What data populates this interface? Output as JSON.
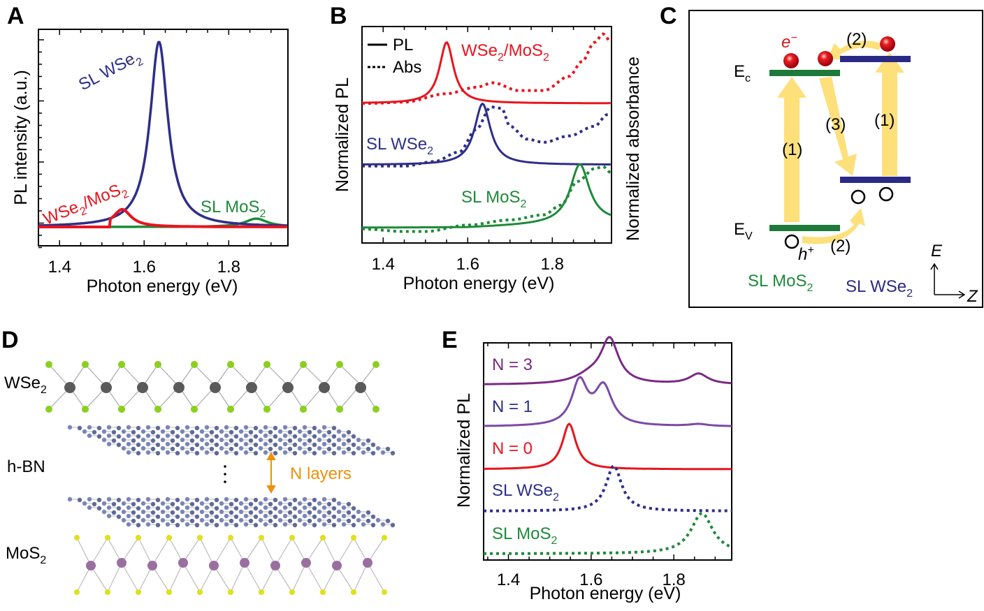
{
  "figure": {
    "panels": [
      "A",
      "B",
      "C",
      "D",
      "E"
    ]
  },
  "chart_data": [
    {
      "panel": "A",
      "type": "line",
      "title": "",
      "xlabel": "Photon energy (eV)",
      "ylabel": "PL intensity (a.u.)",
      "xlim": [
        1.35,
        1.94
      ],
      "ylim": [
        -0.05,
        1.05
      ],
      "xticks": [
        1.4,
        1.6,
        1.8
      ],
      "xtick_labels": [
        "1.4",
        "1.6",
        "1.8"
      ],
      "grid": false,
      "series": [
        {
          "name": "SL WSe2",
          "label": "SL WSe",
          "sub": "2",
          "color": "#2e2e8a",
          "style": "solid",
          "peaks": [
            {
              "center": 1.635,
              "height": 1.0,
              "width": 0.028
            }
          ]
        },
        {
          "name": "WSe2/MoS2",
          "label": "WSe",
          "sub": "2",
          "label2": "/MoS",
          "sub2": "2",
          "color": "#e8141e",
          "style": "solid",
          "peaks": [
            {
              "center": 1.548,
              "height": 0.095,
              "width": 0.028
            }
          ]
        },
        {
          "name": "SL MoS2",
          "label": "SL MoS",
          "sub": "2",
          "color": "#1e8a3a",
          "style": "solid",
          "peaks": [
            {
              "center": 1.865,
              "height": 0.045,
              "width": 0.035
            }
          ]
        }
      ]
    },
    {
      "panel": "B",
      "type": "line",
      "title": "",
      "xlabel": "Photon energy (eV)",
      "ylabel": "Normalized PL",
      "ylabel_right": "Normalized absorbance",
      "xlim": [
        1.35,
        1.94
      ],
      "xticks": [
        1.4,
        1.6,
        1.8
      ],
      "xtick_labels": [
        "1.4",
        "1.6",
        "1.8"
      ],
      "legend": {
        "position": "top-left",
        "entries": [
          {
            "label": "PL",
            "style": "solid"
          },
          {
            "label": "Abs",
            "style": "dotted"
          }
        ]
      },
      "series": [
        {
          "name": "WSe2/MoS2 PL",
          "color": "#e8141e",
          "style": "solid",
          "offset": 2,
          "peaks": [
            {
              "center": 1.55,
              "height": 0.95,
              "width": 0.022
            }
          ]
        },
        {
          "name": "WSe2/MoS2 Abs",
          "color": "#e8141e",
          "style": "dotted",
          "offset": 2,
          "points": [
            [
              1.37,
              0.0
            ],
            [
              1.45,
              0.02
            ],
            [
              1.55,
              0.15
            ],
            [
              1.62,
              0.25
            ],
            [
              1.66,
              0.32
            ],
            [
              1.72,
              0.2
            ],
            [
              1.78,
              0.2
            ],
            [
              1.84,
              0.42
            ],
            [
              1.87,
              0.65
            ],
            [
              1.9,
              0.95
            ],
            [
              1.92,
              1.08
            ],
            [
              1.94,
              0.95
            ]
          ]
        },
        {
          "name": "SL WSe2 PL",
          "color": "#2e2e8a",
          "style": "solid",
          "offset": 1,
          "peaks": [
            {
              "center": 1.635,
              "height": 0.95,
              "width": 0.025
            }
          ]
        },
        {
          "name": "SL WSe2 Abs",
          "color": "#2e2e8a",
          "style": "dotted",
          "offset": 1,
          "points": [
            [
              1.35,
              -0.02
            ],
            [
              1.45,
              -0.02
            ],
            [
              1.52,
              0.05
            ],
            [
              1.58,
              0.2
            ],
            [
              1.62,
              0.55
            ],
            [
              1.655,
              0.9
            ],
            [
              1.68,
              0.88
            ],
            [
              1.7,
              0.6
            ],
            [
              1.74,
              0.4
            ],
            [
              1.78,
              0.35
            ],
            [
              1.84,
              0.45
            ],
            [
              1.9,
              0.6
            ],
            [
              1.93,
              0.78
            ]
          ]
        },
        {
          "name": "SL MoS2 PL",
          "color": "#1e8a3a",
          "style": "solid",
          "offset": 0,
          "peaks": [
            {
              "center": 1.865,
              "height": 0.92,
              "width": 0.03
            }
          ]
        },
        {
          "name": "SL MoS2 Abs",
          "color": "#1e8a3a",
          "style": "dotted",
          "offset": 0,
          "points": [
            [
              1.35,
              -0.02
            ],
            [
              1.45,
              -0.06
            ],
            [
              1.5,
              -0.06
            ],
            [
              1.6,
              0.04
            ],
            [
              1.7,
              0.12
            ],
            [
              1.78,
              0.2
            ],
            [
              1.82,
              0.35
            ],
            [
              1.86,
              0.72
            ],
            [
              1.9,
              0.92
            ],
            [
              1.92,
              0.95
            ],
            [
              1.94,
              0.85
            ]
          ]
        }
      ],
      "annotations": [
        {
          "text": "WSe",
          "sub": "2",
          "text2": "/MoS",
          "sub2": "2",
          "color": "#e8141e"
        },
        {
          "text": "SL WSe",
          "sub": "2",
          "color": "#2e2e8a"
        },
        {
          "text": "SL MoS",
          "sub": "2",
          "color": "#1e8a3a"
        }
      ]
    },
    {
      "panel": "E",
      "type": "line",
      "title": "",
      "xlabel": "Photon energy (eV)",
      "ylabel": "Normalized PL",
      "xlim": [
        1.34,
        1.94
      ],
      "xticks": [
        1.4,
        1.6,
        1.8
      ],
      "xtick_labels": [
        "1.4",
        "1.6",
        "1.8"
      ],
      "series": [
        {
          "name": "N = 3",
          "label": "N = 3",
          "color": "#7b2a84",
          "style": "solid",
          "offset": 4,
          "peaks": [
            {
              "center": 1.645,
              "height": 0.62,
              "width": 0.028
            },
            {
              "center": 1.6,
              "height": 0.12,
              "width": 0.05
            },
            {
              "center": 1.86,
              "height": 0.15,
              "width": 0.03
            }
          ]
        },
        {
          "name": "N = 1",
          "label": "N = 1",
          "color": "#7a4aa8",
          "style": "solid",
          "offset": 3,
          "peaks": [
            {
              "center": 1.572,
              "height": 0.62,
              "width": 0.025
            },
            {
              "center": 1.63,
              "height": 0.55,
              "width": 0.028
            },
            {
              "center": 1.86,
              "height": 0.03,
              "width": 0.03
            }
          ]
        },
        {
          "name": "N = 0",
          "label": "N = 0",
          "color": "#e8141e",
          "style": "solid",
          "offset": 2,
          "peaks": [
            {
              "center": 1.547,
              "height": 0.65,
              "width": 0.022
            }
          ]
        },
        {
          "name": "SL WSe2",
          "label": "SL WSe",
          "sub": "2",
          "color": "#2e2e8a",
          "style": "dotted",
          "offset": 1,
          "peaks": [
            {
              "center": 1.655,
              "height": 0.65,
              "width": 0.025
            }
          ]
        },
        {
          "name": "SL MoS2",
          "label": "SL MoS",
          "sub": "2",
          "color": "#1e8a3a",
          "style": "dotted",
          "offset": 0,
          "peaks": [
            {
              "center": 1.868,
              "height": 0.58,
              "width": 0.035
            }
          ]
        }
      ]
    }
  ],
  "diagram_c": {
    "Ec_label": "E",
    "Ec_sub": "c",
    "Ev_label": "E",
    "Ev_sub": "V",
    "electron_label": "e",
    "electron_sup": "−",
    "hole_label": "h",
    "hole_sup": "+",
    "step_labels": [
      "(1)",
      "(1)",
      "(2)",
      "(2)",
      "(3)"
    ],
    "mos2_label": "SL MoS",
    "mos2_sub": "2",
    "wse2_label": "SL WSe",
    "wse2_sub": "2",
    "axis_e": "E",
    "axis_z": "Z",
    "colors": {
      "mos2": "#1e7a3a",
      "wse2": "#2a2a86",
      "arrow": "#fde07a",
      "electron": "#d8141c"
    }
  },
  "structure_d": {
    "layers": [
      {
        "label": "WSe",
        "sub": "2"
      },
      {
        "label": "h-BN",
        "sub": ""
      },
      {
        "label": "MoS",
        "sub": "2"
      }
    ],
    "n_layers_label": "N layers",
    "ellipsis": "⋮",
    "colors": {
      "se": "#8ccf1e",
      "w": "#5a5a5a",
      "bn": "#7a86b8",
      "mo": "#9a6fa0",
      "s": "#e0e020",
      "n_arrow": "#f0900a"
    }
  }
}
